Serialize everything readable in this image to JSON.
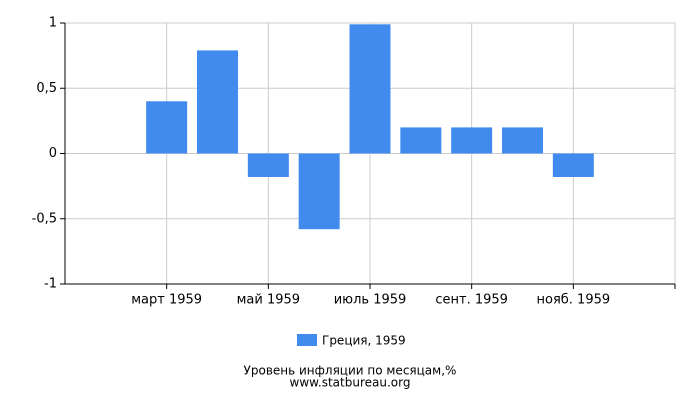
{
  "chart_data": {
    "type": "bar",
    "categories": [
      null,
      null,
      "март 1959",
      null,
      "май 1959",
      null,
      "июль 1959",
      null,
      "сент. 1959",
      null,
      "нояб. 1959",
      null
    ],
    "series": [
      {
        "name": "Греция, 1959",
        "color": "#428bee",
        "values": [
          null,
          null,
          0.4,
          0.79,
          -0.18,
          -0.58,
          0.99,
          0.2,
          0.2,
          0.2,
          -0.18,
          null
        ]
      }
    ],
    "ylim": [
      -1,
      1
    ],
    "yticks": [
      {
        "value": -1,
        "label": "-1"
      },
      {
        "value": -0.5,
        "label": "-0,5"
      },
      0,
      {
        "value": 0.5,
        "label": "0,5"
      },
      1
    ],
    "grid": true,
    "title": "Уровень инфляции по месяцам,%",
    "source": "www.statbureau.org"
  }
}
